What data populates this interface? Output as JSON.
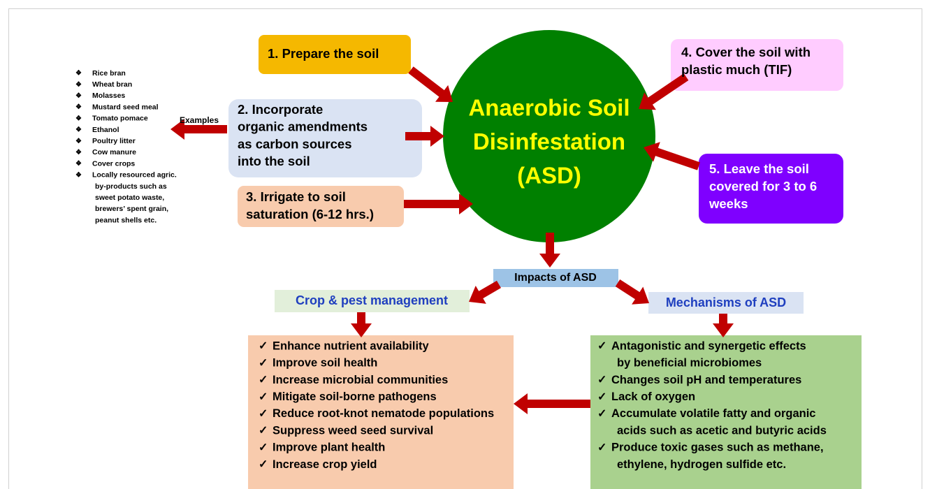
{
  "bullet": "❖",
  "check": "✓",
  "examples": {
    "label": "Examples",
    "items": [
      [
        "Rice bran"
      ],
      [
        "Wheat bran"
      ],
      [
        "Molasses"
      ],
      [
        "Mustard seed meal"
      ],
      [
        "Tomato pomace"
      ],
      [
        "Ethanol"
      ],
      [
        "Poultry litter"
      ],
      [
        "Cow manure"
      ],
      [
        "Cover crops"
      ],
      [
        "Locally resourced agric.",
        "by-products such as",
        "sweet potato waste,",
        "brewers’ spent grain,",
        "peanut shells etc."
      ]
    ]
  },
  "center": {
    "lines": [
      "Anaerobic Soil",
      "Disinfestation",
      "(ASD)"
    ]
  },
  "steps": [
    {
      "lines": [
        "1.  Prepare the soil"
      ]
    },
    {
      "lines": [
        "2.  Incorporate",
        "organic amendments",
        "as carbon sources",
        "into the soil"
      ]
    },
    {
      "lines": [
        "3. Irrigate to soil",
        "saturation (6-12 hrs.)"
      ]
    },
    {
      "lines": [
        "4.  Cover the soil with",
        "plastic much (TIF)"
      ]
    },
    {
      "lines": [
        "5. Leave the soil",
        "covered for 3 to 6",
        "weeks"
      ]
    }
  ],
  "impacts": "Impacts of ASD",
  "crop": {
    "title": "Crop & pest management",
    "items": [
      [
        "Enhance nutrient availability"
      ],
      [
        "Improve soil health"
      ],
      [
        "Increase microbial communities"
      ],
      [
        "Mitigate soil-borne pathogens"
      ],
      [
        "Reduce root-knot nematode populations"
      ],
      [
        "Suppress weed seed survival"
      ],
      [
        "Improve plant health"
      ],
      [
        "Increase crop yield"
      ]
    ]
  },
  "mechanisms": {
    "title": "Mechanisms of ASD",
    "items": [
      [
        "Antagonistic and synergetic effects",
        "by beneficial microbiomes"
      ],
      [
        "Changes soil pH and temperatures"
      ],
      [
        "Lack of oxygen"
      ],
      [
        "Accumulate volatile fatty and organic",
        "acids such as acetic and butyric acids"
      ],
      [
        "Produce toxic gases such as methane,",
        "ethylene, hydrogen sulfide etc."
      ]
    ]
  }
}
